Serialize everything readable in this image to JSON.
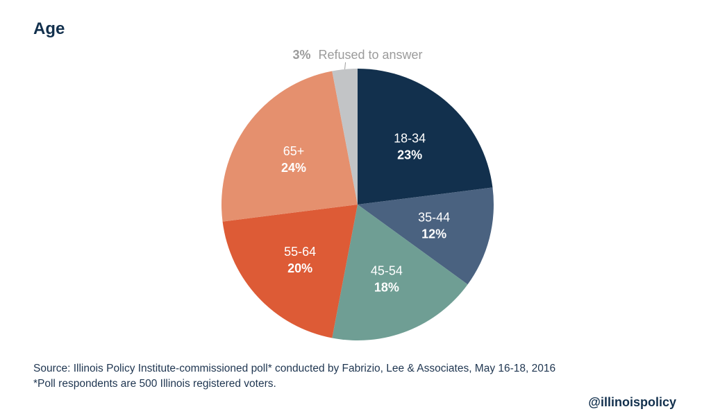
{
  "title": "Age",
  "chart_data": {
    "type": "pie",
    "title": "Age",
    "unit": "%",
    "slices": [
      {
        "label": "18-34",
        "value": 23,
        "display": "23%",
        "color": "#12304d"
      },
      {
        "label": "35-44",
        "value": 12,
        "display": "12%",
        "color": "#4a6280"
      },
      {
        "label": "45-54",
        "value": 18,
        "display": "18%",
        "color": "#6f9e94"
      },
      {
        "label": "55-64",
        "value": 20,
        "display": "20%",
        "color": "#dd5b36"
      },
      {
        "label": "65+",
        "value": 24,
        "display": "24%",
        "color": "#e5906e"
      },
      {
        "label": "Refused to answer",
        "value": 3,
        "display": "3%",
        "color": "#c2c4c6"
      }
    ],
    "callout": {
      "value": "3%",
      "label": "Refused to answer"
    }
  },
  "footer": {
    "source": "Source: Illinois Policy Institute-commissioned poll* conducted by Fabrizio, Lee & Associates, May 16-18, 2016",
    "note": "*Poll respondents are 500 Illinois registered voters.",
    "handle": "@illinoispolicy"
  },
  "colors": {
    "title": "#12304d",
    "callout_text": "#9b9b9b",
    "callout_line": "#9b9b9b"
  }
}
